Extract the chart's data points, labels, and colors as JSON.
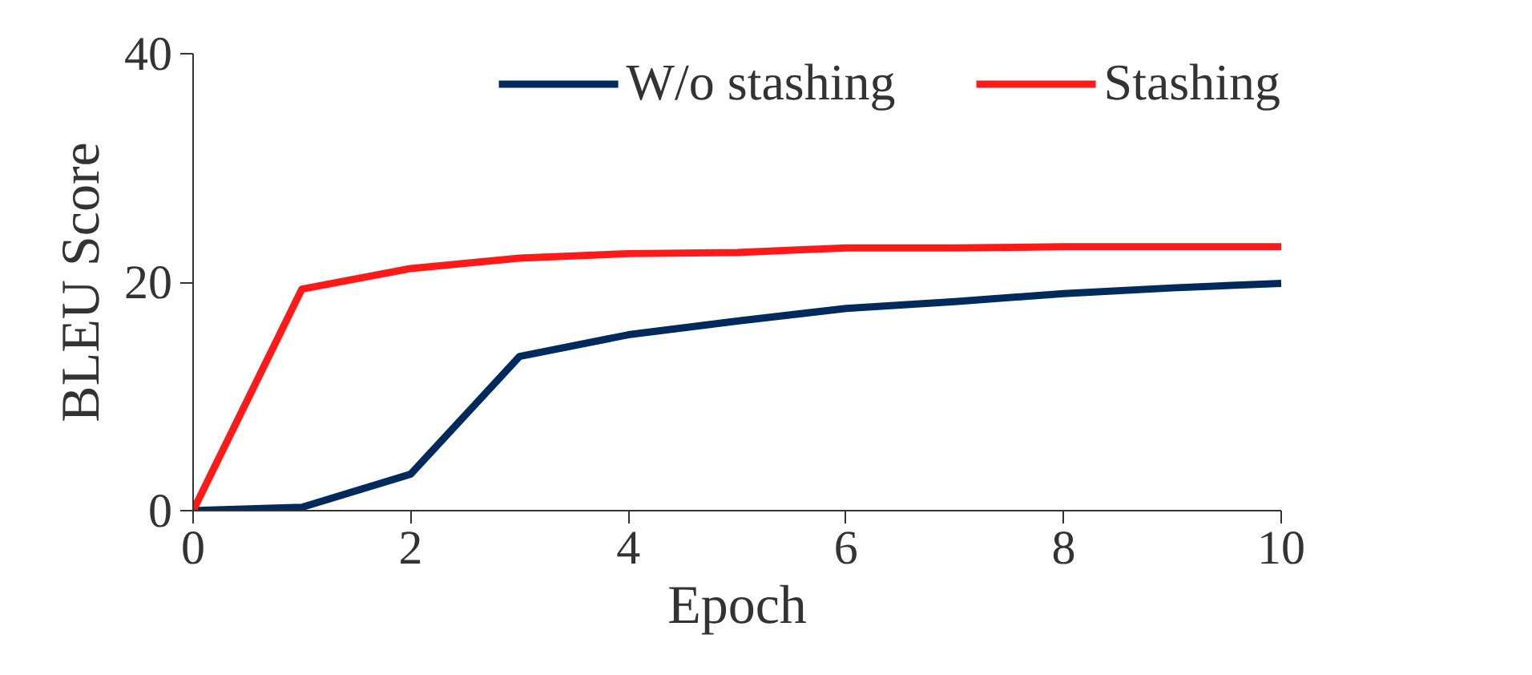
{
  "chart_data": {
    "type": "line",
    "xlabel": "Epoch",
    "ylabel": "BLEU Score",
    "x": [
      0,
      1,
      2,
      3,
      4,
      5,
      6,
      7,
      8,
      9,
      10
    ],
    "series": [
      {
        "name": "W/o stashing",
        "color": "#002a5c",
        "values": [
          0,
          0.3,
          3.2,
          13.5,
          15.4,
          16.6,
          17.7,
          18.3,
          19.0,
          19.5,
          19.9
        ]
      },
      {
        "name": "Stashing",
        "color": "#ff1a1a",
        "values": [
          0,
          19.4,
          21.2,
          22.1,
          22.5,
          22.6,
          23.0,
          23.0,
          23.1,
          23.1,
          23.1
        ]
      }
    ],
    "xlim": [
      0,
      10
    ],
    "ylim": [
      0,
      40
    ],
    "xticks": [
      0,
      2,
      4,
      6,
      8,
      10
    ],
    "yticks": [
      0,
      20,
      40
    ],
    "grid": false,
    "legend": "top",
    "marker": "none",
    "line_style": "solid"
  }
}
